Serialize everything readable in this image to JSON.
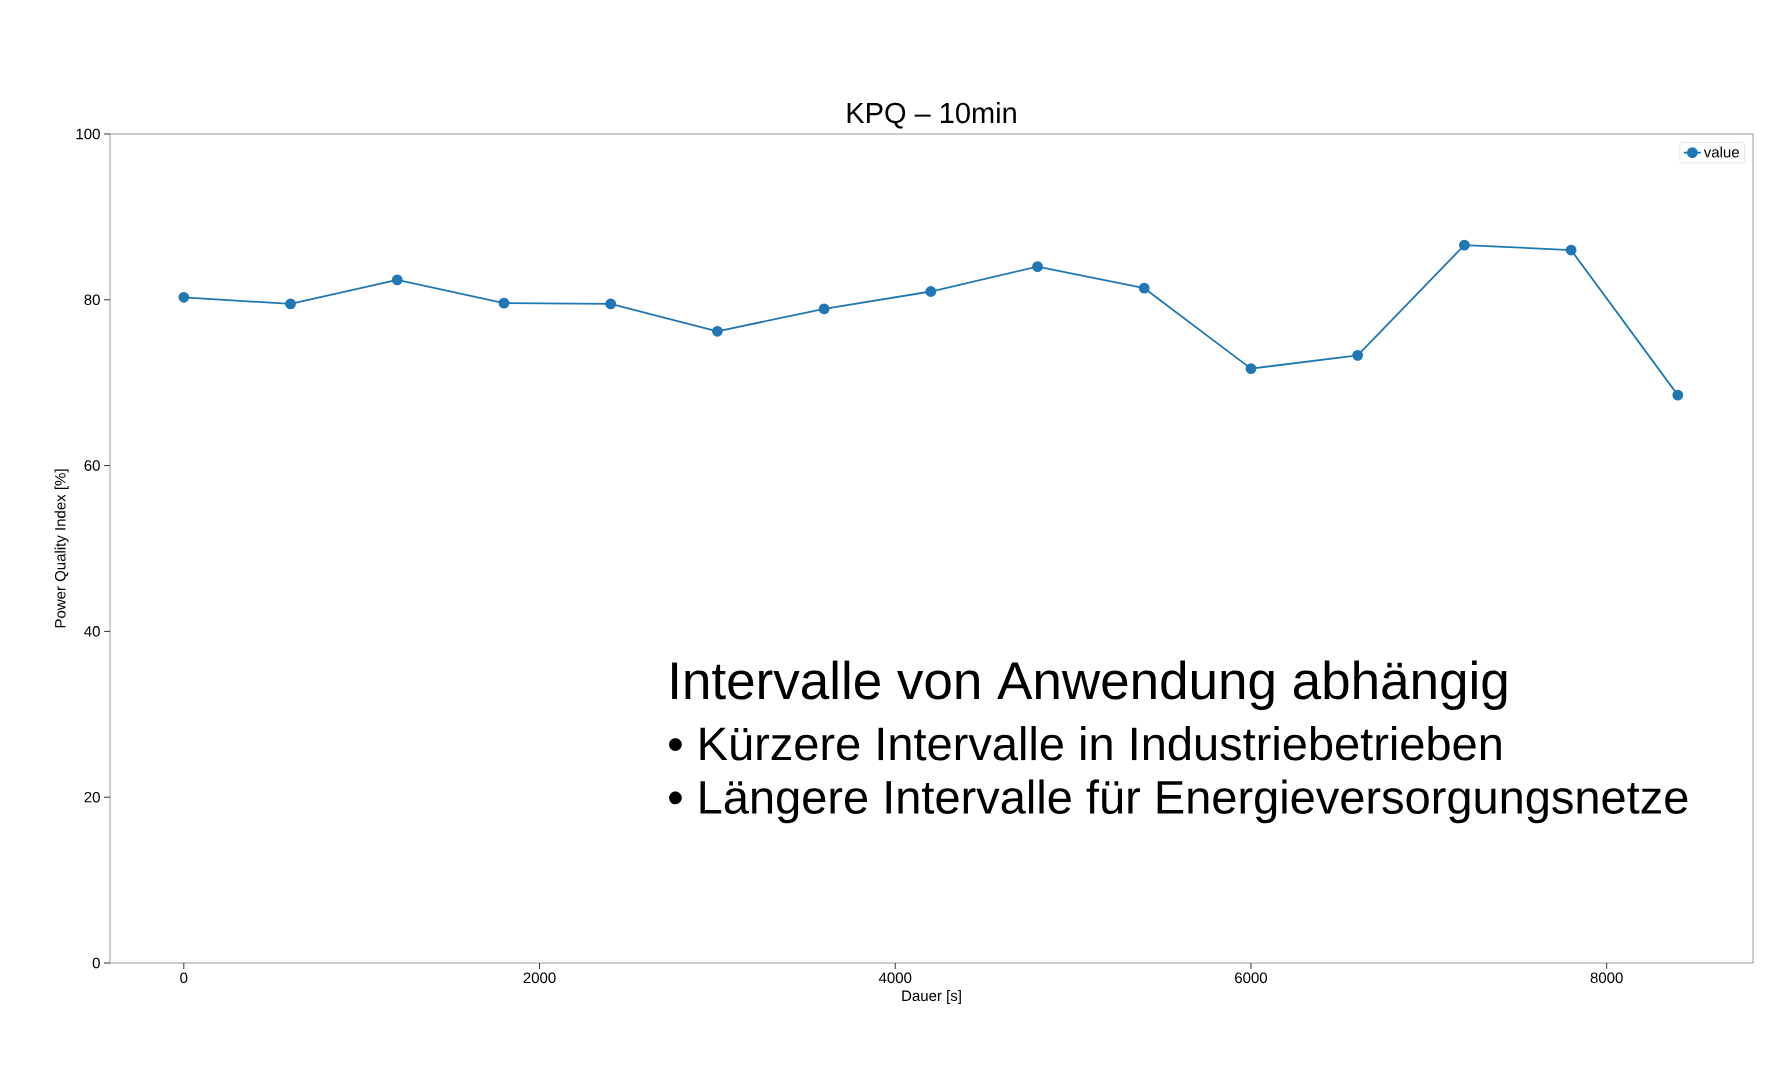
{
  "chart_data": {
    "type": "line",
    "title": "KPQ – 10min",
    "xlabel": "Dauer [s]",
    "ylabel": "Power Quality Index [%]",
    "x": [
      0,
      600,
      1200,
      1800,
      2400,
      3000,
      3600,
      4200,
      4800,
      5400,
      6000,
      6600,
      7200,
      7800,
      8400
    ],
    "series": [
      {
        "name": "value",
        "color": "#1f77b4",
        "values": [
          80.3,
          79.5,
          82.4,
          79.6,
          79.5,
          76.2,
          78.9,
          81.0,
          84.0,
          81.4,
          71.7,
          73.3,
          86.6,
          86.0,
          68.5
        ]
      }
    ],
    "xlim": [
      -415,
      8823
    ],
    "ylim": [
      0,
      100
    ],
    "xticks": [
      0,
      2000,
      4000,
      6000,
      8000
    ],
    "yticks": [
      0,
      20,
      40,
      60,
      80,
      100
    ],
    "legend": "top right",
    "marker": "circle",
    "line_style": "solid",
    "grid": false,
    "annotations": [
      "Intervalle von Anwendung abhängig",
      "• Kürzere Intervalle in Industriebetrieben",
      "• Längere Intervalle für Energieversorgungsnetze"
    ]
  }
}
